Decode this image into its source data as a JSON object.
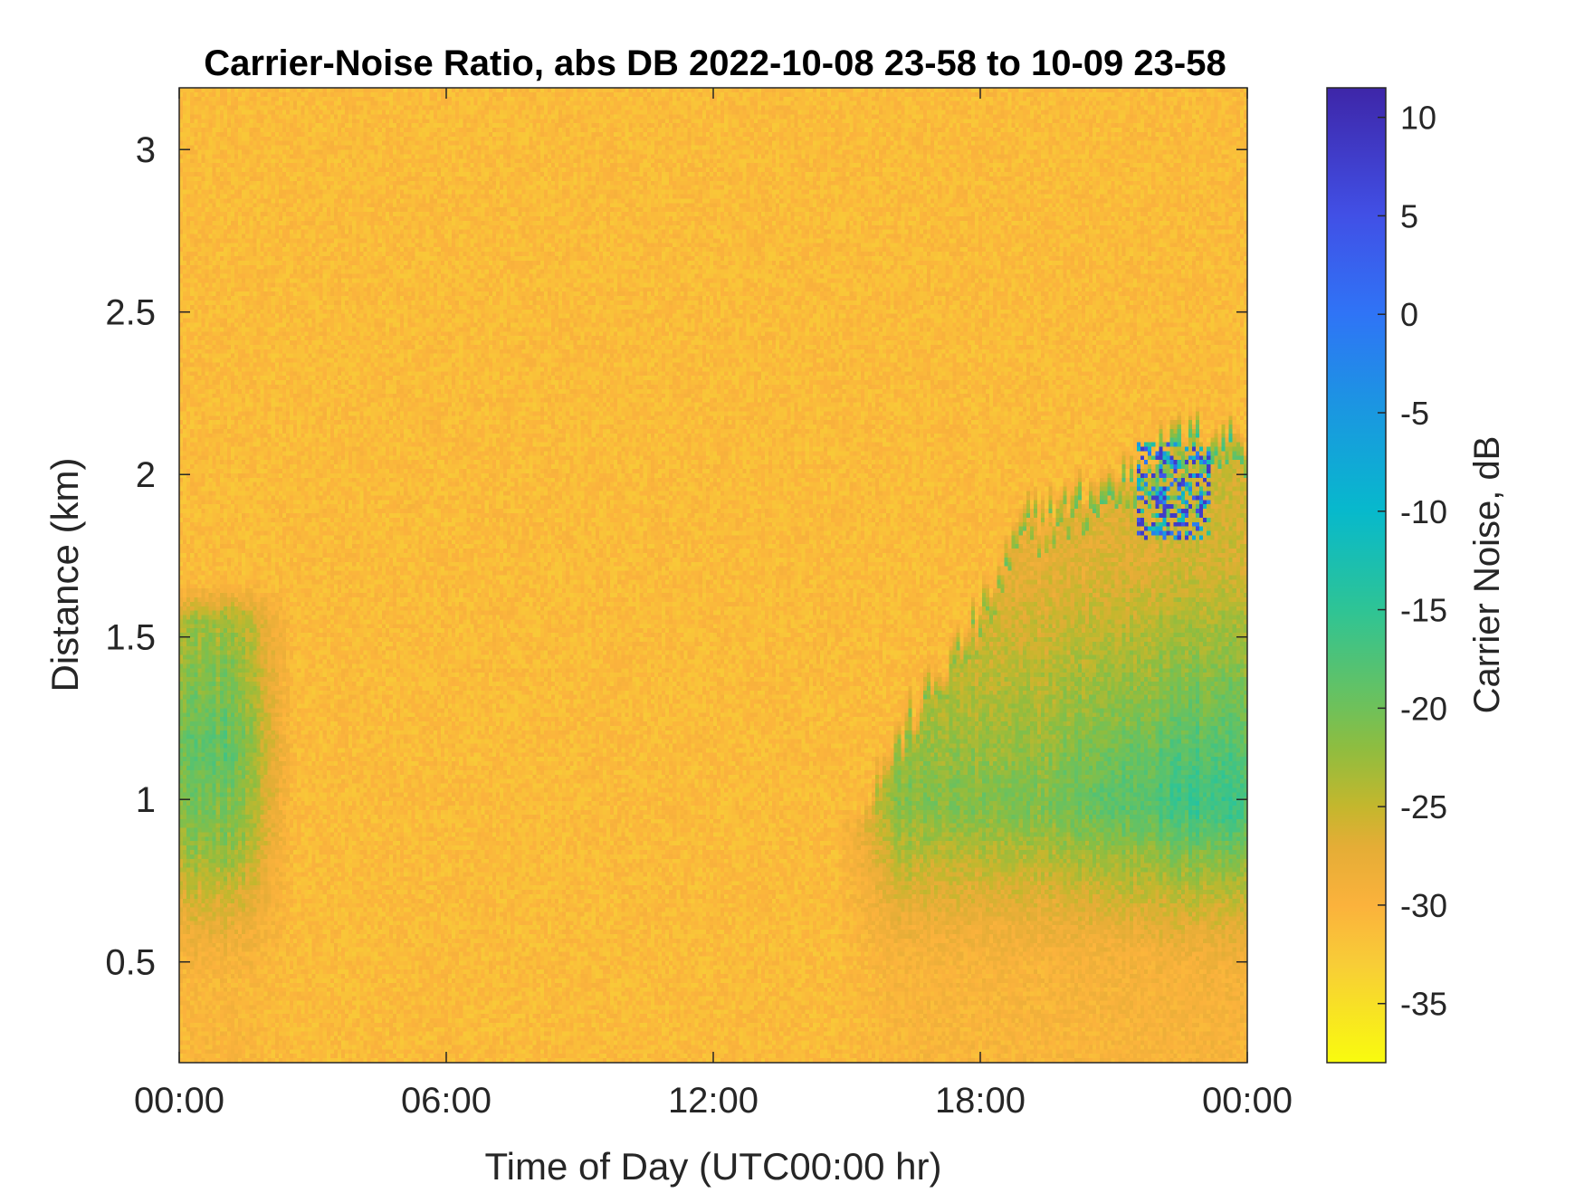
{
  "chart_data": {
    "type": "heatmap",
    "title": "Carrier-Noise Ratio, abs DB 2022-10-08 23-58 to 10-09 23-58",
    "xlabel": "Time of Day (UTC00:00 hr)",
    "ylabel": "Distance (km)",
    "colorbar_label": "Carrier Noise, dB",
    "xlim_hours": [
      0,
      24
    ],
    "ylim_km": [
      0.19,
      3.19
    ],
    "clim_db": [
      -38,
      11.5
    ],
    "x_ticks": [
      {
        "value": 0,
        "label": "00:00"
      },
      {
        "value": 6,
        "label": "06:00"
      },
      {
        "value": 12,
        "label": "12:00"
      },
      {
        "value": 18,
        "label": "18:00"
      },
      {
        "value": 24,
        "label": "00:00"
      }
    ],
    "y_ticks": [
      {
        "value": 0.5,
        "label": "0.5"
      },
      {
        "value": 1,
        "label": "1"
      },
      {
        "value": 1.5,
        "label": "1.5"
      },
      {
        "value": 2,
        "label": "2"
      },
      {
        "value": 2.5,
        "label": "2.5"
      },
      {
        "value": 3,
        "label": "3"
      }
    ],
    "colorbar_ticks": [
      {
        "value": 10,
        "label": "10"
      },
      {
        "value": 5,
        "label": "5"
      },
      {
        "value": 0,
        "label": "0"
      },
      {
        "value": -5,
        "label": "-5"
      },
      {
        "value": -10,
        "label": "-10"
      },
      {
        "value": -15,
        "label": "-15"
      },
      {
        "value": -20,
        "label": "-20"
      },
      {
        "value": -25,
        "label": "-25"
      },
      {
        "value": -30,
        "label": "-30"
      },
      {
        "value": -35,
        "label": "-35"
      }
    ],
    "colormap": [
      {
        "db": -38,
        "color": "#f9fb0e"
      },
      {
        "db": -33,
        "color": "#f8cd37"
      },
      {
        "db": -30,
        "color": "#fbb23c"
      },
      {
        "db": -27,
        "color": "#e4ad36"
      },
      {
        "db": -25,
        "color": "#c4b72d"
      },
      {
        "db": -22,
        "color": "#8ebd40"
      },
      {
        "db": -20,
        "color": "#6fc15a"
      },
      {
        "db": -15,
        "color": "#2ec495"
      },
      {
        "db": -10,
        "color": "#07b9cc"
      },
      {
        "db": -5,
        "color": "#1a98e0"
      },
      {
        "db": 0,
        "color": "#2f74f6"
      },
      {
        "db": 5,
        "color": "#4150e6"
      },
      {
        "db": 11.5,
        "color": "#3e26a8"
      }
    ],
    "background_db": -31,
    "regions": [
      {
        "name": "morning-aerosol-layer",
        "x_hours": [
          0,
          2.2
        ],
        "y_top_km": 1.55,
        "y_bottom_km": 0.19,
        "peak_db": -19
      },
      {
        "name": "evening-aerosol-layer",
        "x_hours": [
          15.2,
          24
        ],
        "top_km_profile": [
          [
            15.2,
            0.9
          ],
          [
            16.5,
            1.2
          ],
          [
            18,
            1.5
          ],
          [
            19,
            1.8
          ],
          [
            20,
            1.85
          ],
          [
            21.5,
            1.95
          ],
          [
            22.5,
            2.05
          ],
          [
            24,
            2.05
          ]
        ],
        "peak_db": -16
      },
      {
        "name": "cloud-returns",
        "x_hours": [
          21.5,
          23.2
        ],
        "y_km": [
          1.85,
          2.1
        ],
        "peak_db": 10
      }
    ]
  }
}
